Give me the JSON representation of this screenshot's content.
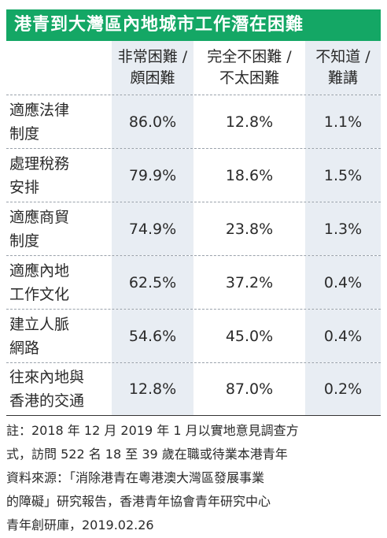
{
  "title": "港青到大灣區內地城市工作潛在困難",
  "columns": [
    {
      "line1": "非常困難 /",
      "line2": "頗困難"
    },
    {
      "line1": "完全不困難 /",
      "line2": "不太困難"
    },
    {
      "line1": "不知道 /",
      "line2": "難講"
    }
  ],
  "rows": [
    {
      "label1": "適應法律",
      "label2": "制度",
      "v1": "86.0%",
      "v2": "12.8%",
      "v3": "1.1%"
    },
    {
      "label1": "處理稅務",
      "label2": "安排",
      "v1": "79.9%",
      "v2": "18.6%",
      "v3": "1.5%"
    },
    {
      "label1": "適應商貿",
      "label2": "制度",
      "v1": "74.9%",
      "v2": "23.8%",
      "v3": "1.3%"
    },
    {
      "label1": "適應內地",
      "label2": "工作文化",
      "v1": "62.5%",
      "v2": "37.2%",
      "v3": "0.4%"
    },
    {
      "label1": "建立人脈",
      "label2": "網路",
      "v1": "54.6%",
      "v2": "45.0%",
      "v3": "0.4%"
    },
    {
      "label1": "往來內地與",
      "label2": "香港的交通",
      "v1": "12.8%",
      "v2": "87.0%",
      "v3": "0.2%"
    }
  ],
  "note_lines": [
    "註：2018 年 12 月 2019 年 1 月以實地意見調查方",
    "式，訪問 522 名 18 至 39 歲在職或待業本港青年",
    "資料來源：「消除港青在粵港澳大灣區發展事業",
    "的障礙」研究報告，香港青年協會青年研究中心",
    "青年創研庫，2019.02.26"
  ],
  "colors": {
    "title_bg": "#14a765",
    "shade": "#e8edf3"
  }
}
